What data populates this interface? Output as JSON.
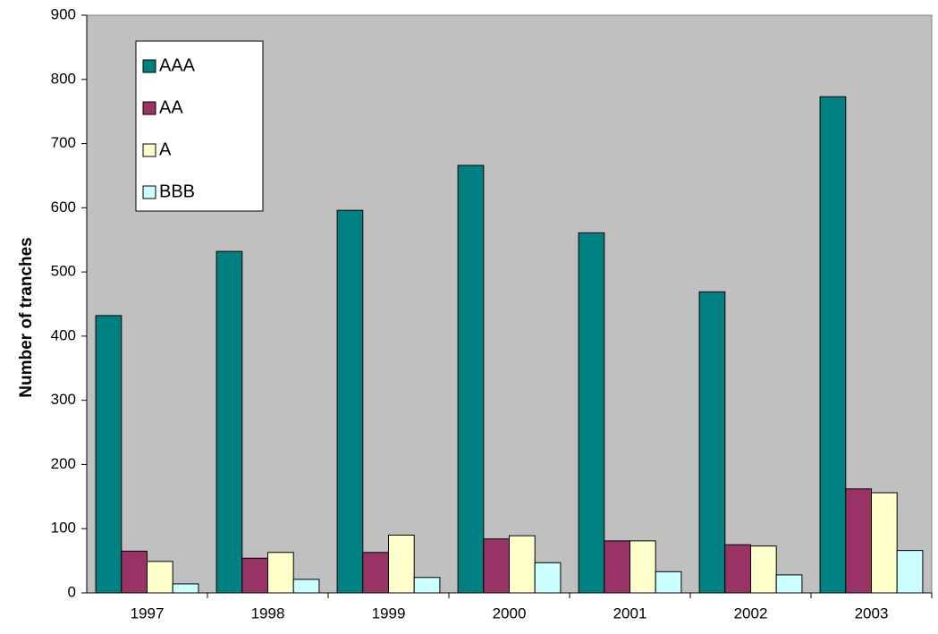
{
  "chart_data": {
    "type": "bar",
    "ylabel": "Number of tranches",
    "categories": [
      "1997",
      "1998",
      "1999",
      "2000",
      "2001",
      "2002",
      "2003"
    ],
    "series": [
      {
        "name": "AAA",
        "color": "#008080",
        "values": [
          432,
          532,
          596,
          666,
          561,
          469,
          773
        ]
      },
      {
        "name": "AA",
        "color": "#993366",
        "values": [
          65,
          54,
          63,
          84,
          81,
          75,
          162
        ]
      },
      {
        "name": "A",
        "color": "#FFFFCC",
        "values": [
          49,
          63,
          90,
          89,
          81,
          73,
          156
        ]
      },
      {
        "name": "BBB",
        "color": "#CCFFFF",
        "values": [
          14,
          21,
          24,
          47,
          33,
          28,
          66
        ]
      }
    ],
    "ylim": [
      0,
      900
    ],
    "yticks": [
      0,
      100,
      200,
      300,
      400,
      500,
      600,
      700,
      800,
      900
    ],
    "grid": false,
    "legend": "upper left",
    "plot_background": "#C0C0C0"
  }
}
